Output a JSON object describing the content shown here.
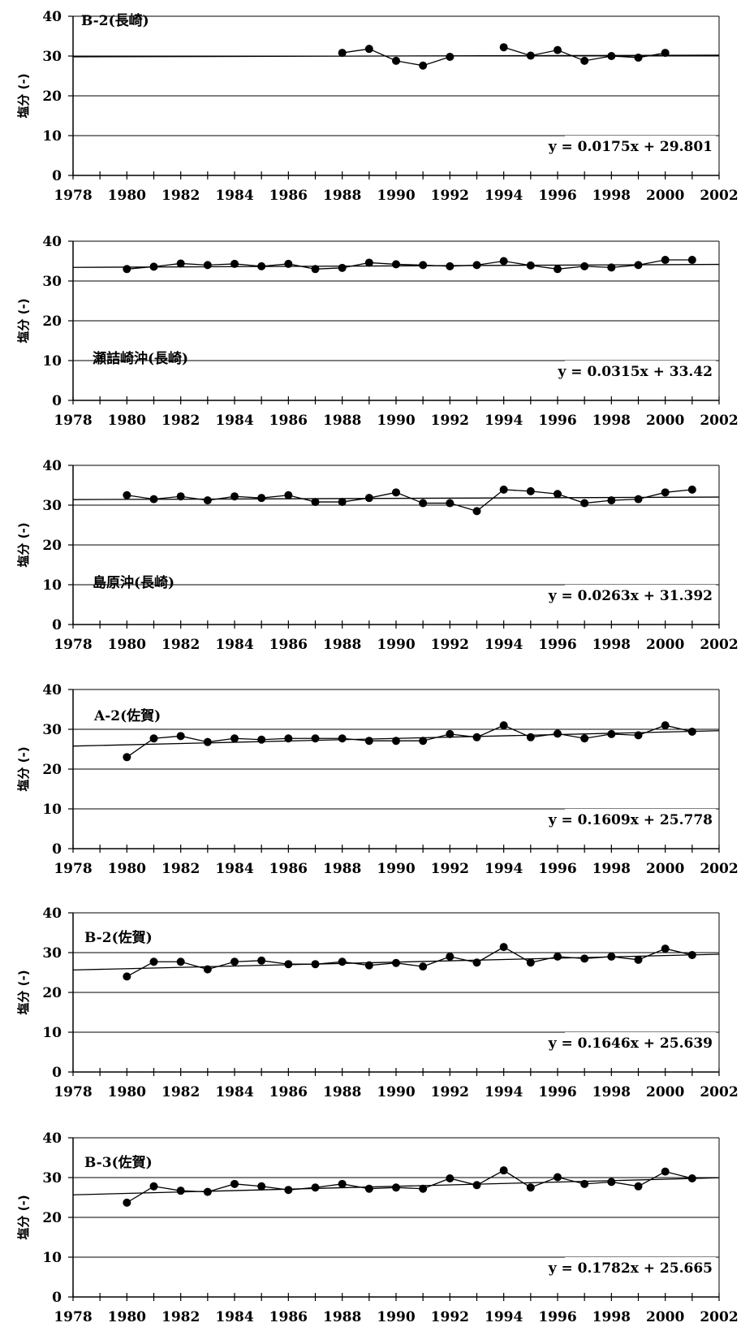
{
  "chart_data": [
    {
      "type": "line",
      "title": "",
      "annotation": "B-2(長崎)",
      "xlabel": "",
      "ylabel": "塩分 (-)",
      "xlim": [
        1978,
        2002
      ],
      "ylim": [
        0,
        40
      ],
      "x_ticks": [
        "1978",
        "1980",
        "1982",
        "1984",
        "1986",
        "1988",
        "1990",
        "1992",
        "1994",
        "1996",
        "1998",
        "2000",
        "2002"
      ],
      "y_ticks": [
        "0",
        "10",
        "20",
        "30",
        "40"
      ],
      "grid": true,
      "segments": [
        {
          "x": [
            1988,
            1989,
            1990,
            1991,
            1992
          ],
          "y": [
            30.8,
            31.8,
            28.8,
            27.6,
            29.8
          ]
        },
        {
          "x": [
            1994,
            1995,
            1996,
            1997,
            1998,
            1999,
            2000
          ],
          "y": [
            32.2,
            30.1,
            31.5,
            28.8,
            30.0,
            29.6,
            30.8
          ]
        }
      ],
      "trendline": {
        "slope": 0.0175,
        "intercept": 29.801,
        "equation": "y = 0.0175x + 29.801"
      }
    },
    {
      "type": "line",
      "title": "",
      "annotation": "瀬詰崎沖(長崎)",
      "xlabel": "",
      "ylabel": "塩分 (-)",
      "xlim": [
        1978,
        2002
      ],
      "ylim": [
        0,
        40
      ],
      "x_ticks": [
        "1978",
        "1980",
        "1982",
        "1984",
        "1986",
        "1988",
        "1990",
        "1992",
        "1994",
        "1996",
        "1998",
        "2000",
        "2002"
      ],
      "y_ticks": [
        "0",
        "10",
        "20",
        "30",
        "40"
      ],
      "grid": true,
      "segments": [
        {
          "x": [
            1980,
            1981,
            1982,
            1983,
            1984,
            1985,
            1986,
            1987,
            1988,
            1989,
            1990,
            1991,
            1992,
            1993,
            1994,
            1995,
            1996,
            1997,
            1998,
            1999,
            2000,
            2001
          ],
          "y": [
            33.0,
            33.6,
            34.4,
            34.0,
            34.3,
            33.7,
            34.3,
            33.0,
            33.3,
            34.6,
            34.2,
            34.0,
            33.7,
            34.0,
            35.0,
            33.9,
            33.0,
            33.7,
            33.4,
            34.0,
            35.3,
            35.3
          ]
        }
      ],
      "trendline": {
        "slope": 0.0315,
        "intercept": 33.42,
        "equation": "y = 0.0315x + 33.42"
      }
    },
    {
      "type": "line",
      "title": "",
      "annotation": "島原沖(長崎)",
      "xlabel": "",
      "ylabel": "塩分 (-)",
      "xlim": [
        1978,
        2002
      ],
      "ylim": [
        0,
        40
      ],
      "x_ticks": [
        "1978",
        "1980",
        "1982",
        "1984",
        "1986",
        "1988",
        "1990",
        "1992",
        "1994",
        "1996",
        "1998",
        "2000",
        "2002"
      ],
      "y_ticks": [
        "0",
        "10",
        "20",
        "30",
        "40"
      ],
      "grid": true,
      "segments": [
        {
          "x": [
            1980,
            1981,
            1982,
            1983,
            1984,
            1985,
            1986,
            1987,
            1988,
            1989,
            1990,
            1991,
            1992,
            1993,
            1994,
            1995,
            1996,
            1997,
            1998,
            1999,
            2000,
            2001
          ],
          "y": [
            32.5,
            31.5,
            32.2,
            31.2,
            32.2,
            31.8,
            32.5,
            30.8,
            30.8,
            31.8,
            33.2,
            30.5,
            30.5,
            28.5,
            33.9,
            33.5,
            32.8,
            30.5,
            31.2,
            31.5,
            33.2,
            33.9
          ]
        }
      ],
      "trendline": {
        "slope": 0.0263,
        "intercept": 31.392,
        "equation": "y = 0.0263x + 31.392"
      }
    },
    {
      "type": "line",
      "title": "",
      "annotation": "A-2(佐賀)",
      "xlabel": "",
      "ylabel": "塩分 (-)",
      "xlim": [
        1978,
        2002
      ],
      "ylim": [
        0,
        40
      ],
      "x_ticks": [
        "1978",
        "1980",
        "1982",
        "1984",
        "1986",
        "1988",
        "1990",
        "1992",
        "1994",
        "1996",
        "1998",
        "2000",
        "2002"
      ],
      "y_ticks": [
        "0",
        "10",
        "20",
        "30",
        "40"
      ],
      "grid": true,
      "segments": [
        {
          "x": [
            1980,
            1981,
            1982,
            1983,
            1984,
            1985,
            1986,
            1987,
            1988,
            1989,
            1990,
            1991,
            1992,
            1993,
            1994,
            1995,
            1996,
            1997,
            1998,
            1999,
            2000,
            2001
          ],
          "y": [
            23.0,
            27.7,
            28.3,
            26.8,
            27.7,
            27.4,
            27.7,
            27.7,
            27.7,
            27.1,
            27.1,
            27.1,
            28.8,
            28.0,
            31.0,
            28.0,
            28.9,
            27.7,
            28.8,
            28.5,
            31.0,
            29.4
          ]
        }
      ],
      "trendline": {
        "slope": 0.1609,
        "intercept": 25.778,
        "equation": "y = 0.1609x + 25.778"
      }
    },
    {
      "type": "line",
      "title": "",
      "annotation": "B-2(佐賀)",
      "xlabel": "",
      "ylabel": "塩分 (-)",
      "xlim": [
        1978,
        2002
      ],
      "ylim": [
        0,
        40
      ],
      "x_ticks": [
        "1978",
        "1980",
        "1982",
        "1984",
        "1986",
        "1988",
        "1990",
        "1992",
        "1994",
        "1996",
        "1998",
        "2000",
        "2002"
      ],
      "y_ticks": [
        "0",
        "10",
        "20",
        "30",
        "40"
      ],
      "grid": true,
      "segments": [
        {
          "x": [
            1980,
            1981,
            1982,
            1983,
            1984,
            1985,
            1986,
            1987,
            1988,
            1989,
            1990,
            1991,
            1992,
            1993,
            1994,
            1995,
            1996,
            1997,
            1998,
            1999,
            2000,
            2001
          ],
          "y": [
            24.0,
            27.7,
            27.7,
            25.8,
            27.7,
            28.0,
            27.1,
            27.1,
            27.7,
            26.8,
            27.4,
            26.5,
            29.0,
            27.5,
            31.4,
            27.5,
            29.0,
            28.5,
            29.0,
            28.2,
            31.0,
            29.4
          ]
        }
      ],
      "trendline": {
        "slope": 0.1646,
        "intercept": 25.639,
        "equation": "y = 0.1646x + 25.639"
      }
    },
    {
      "type": "line",
      "title": "",
      "annotation": "B-3(佐賀)",
      "xlabel": "",
      "ylabel": "塩分 (-)",
      "xlim": [
        1978,
        2002
      ],
      "ylim": [
        0,
        40
      ],
      "x_ticks": [
        "1978",
        "1980",
        "1982",
        "1984",
        "1986",
        "1988",
        "1990",
        "1992",
        "1994",
        "1996",
        "1998",
        "2000",
        "2002"
      ],
      "y_ticks": [
        "0",
        "10",
        "20",
        "30",
        "40"
      ],
      "grid": true,
      "segments": [
        {
          "x": [
            1980,
            1981,
            1982,
            1983,
            1984,
            1985,
            1986,
            1987,
            1988,
            1989,
            1990,
            1991,
            1992,
            1993,
            1994,
            1995,
            1996,
            1997,
            1998,
            1999,
            2000,
            2001
          ],
          "y": [
            23.7,
            27.8,
            26.7,
            26.4,
            28.4,
            27.8,
            26.9,
            27.5,
            28.4,
            27.2,
            27.5,
            27.2,
            29.8,
            28.1,
            31.8,
            27.5,
            30.1,
            28.4,
            28.9,
            27.8,
            31.5,
            29.8
          ]
        }
      ],
      "trendline": {
        "slope": 0.1782,
        "intercept": 25.665,
        "equation": "y = 0.1782x + 25.665"
      }
    }
  ]
}
